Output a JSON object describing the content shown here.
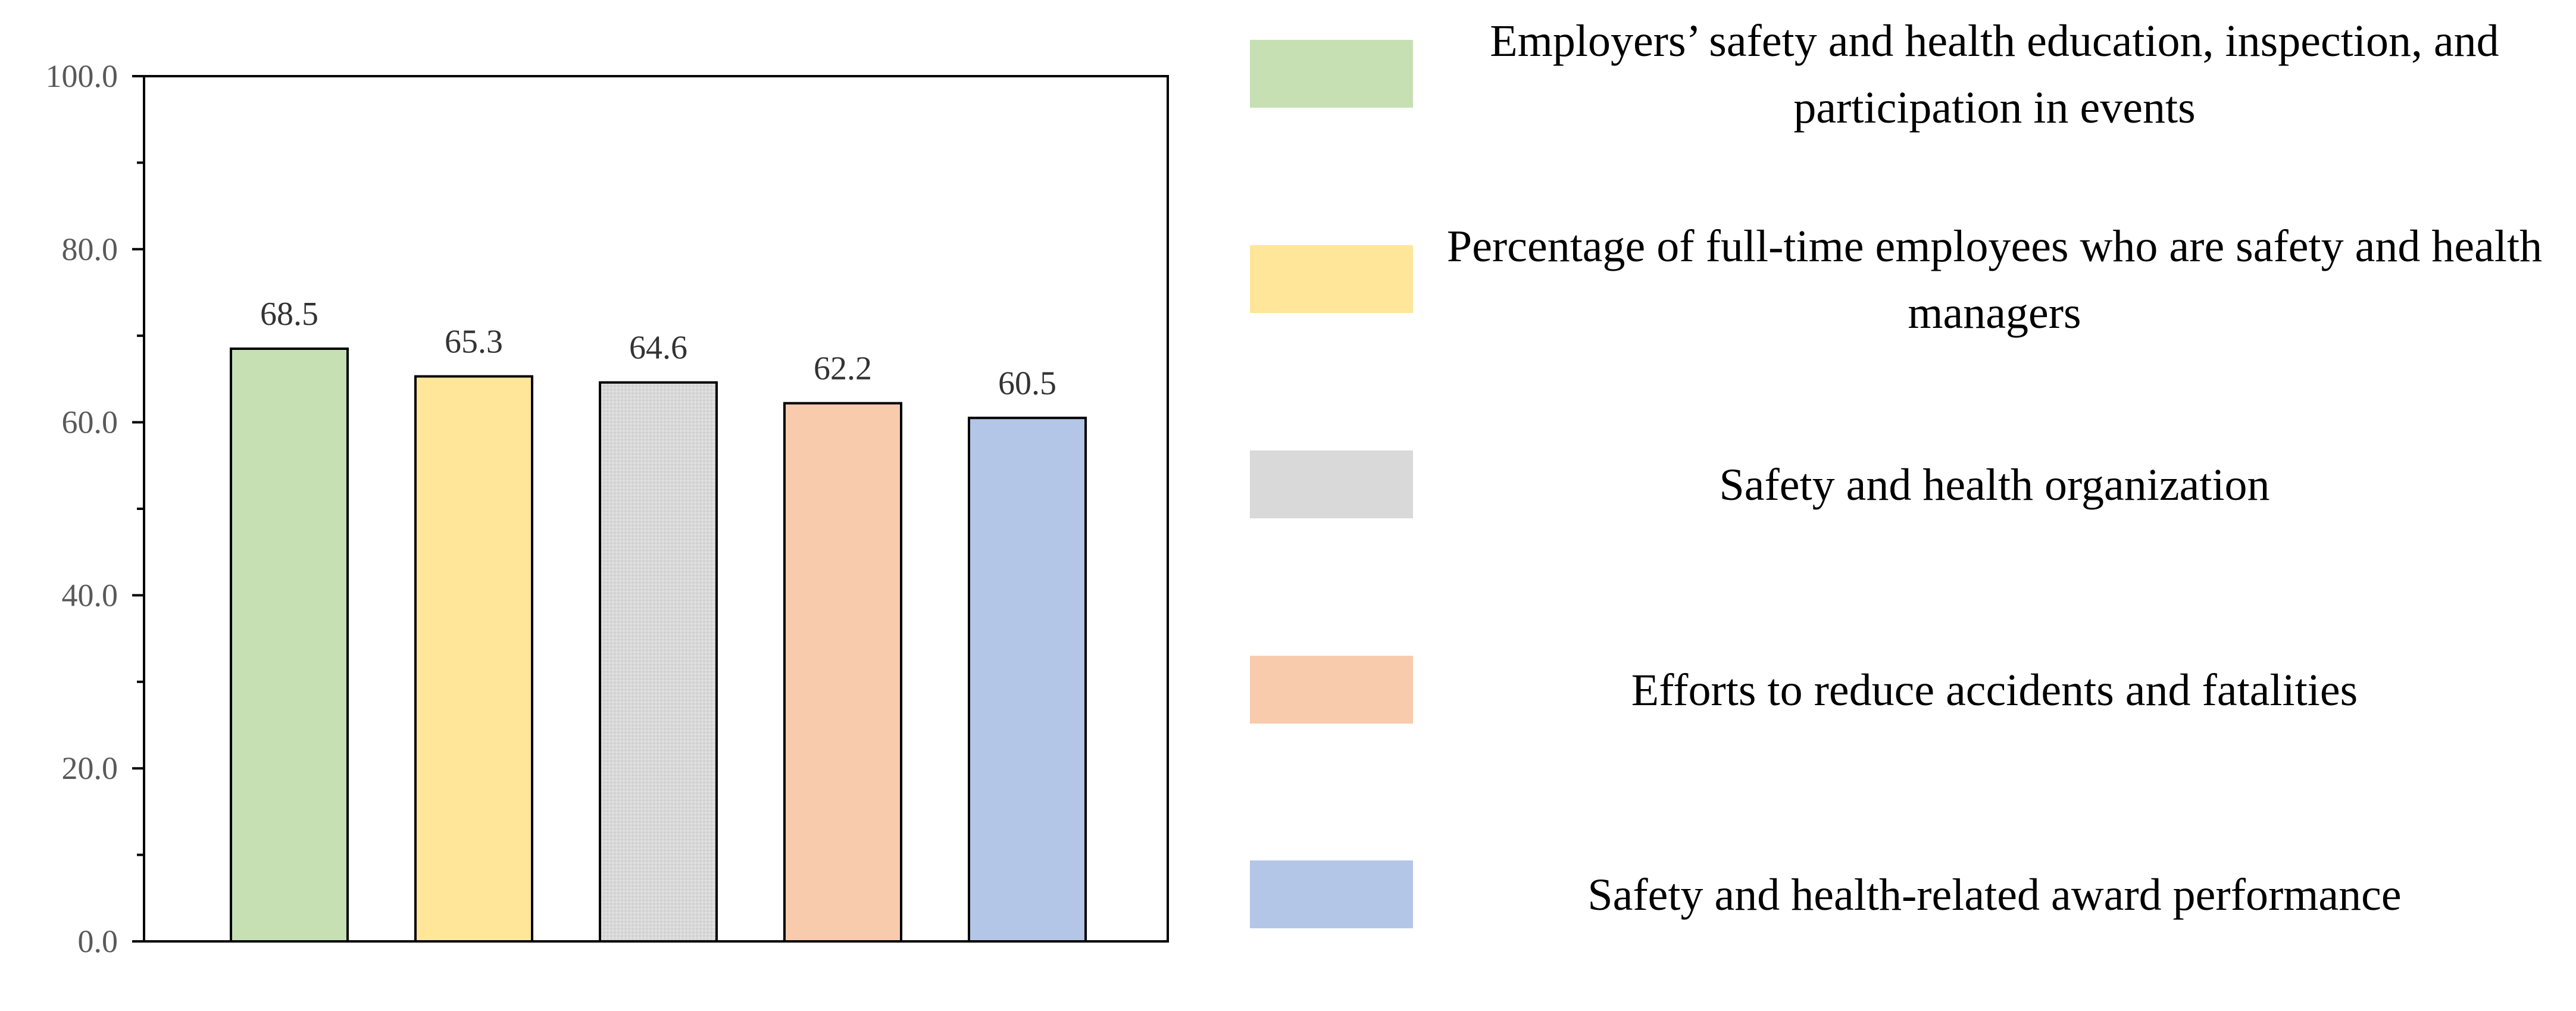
{
  "chart_data": {
    "type": "bar",
    "title": "",
    "xlabel": "",
    "ylabel": "",
    "ylim": [
      0,
      100
    ],
    "yticks": [
      0,
      20,
      40,
      60,
      80,
      100
    ],
    "ytick_labels": [
      "0.0",
      "20.0",
      "40.0",
      "60.0",
      "80.0",
      "100.0"
    ],
    "minor_tick_step": 10,
    "categories": [
      "Employers’ safety and health education, inspection, and participation in events",
      "Percentage of full-time employees who are safety and health managers",
      "Safety and health organization",
      "Efforts to reduce accidents and fatalities",
      "Safety and health-related award performance"
    ],
    "values": [
      68.5,
      65.3,
      64.6,
      62.2,
      60.5
    ],
    "value_labels": [
      "68.5",
      "65.3",
      "64.6",
      "62.2",
      "60.5"
    ],
    "colors": [
      "#c6e0b4",
      "#ffe699",
      "#d9d9d9",
      "#f8cbad",
      "#b4c6e7"
    ],
    "grid": false,
    "legend_position": "right"
  },
  "legend": {
    "items": [
      {
        "label": "Employers’ safety and health education, inspection, and participation in events",
        "color": "#c6e0b4"
      },
      {
        "label": "Percentage of full-time employees who are safety and health managers",
        "color": "#ffe699"
      },
      {
        "label": "Safety and health organization",
        "color": "#d9d9d9"
      },
      {
        "label": "Efforts to reduce accidents and fatalities",
        "color": "#f8cbad"
      },
      {
        "label": "Safety and health-related award performance",
        "color": "#b4c6e7"
      }
    ]
  }
}
